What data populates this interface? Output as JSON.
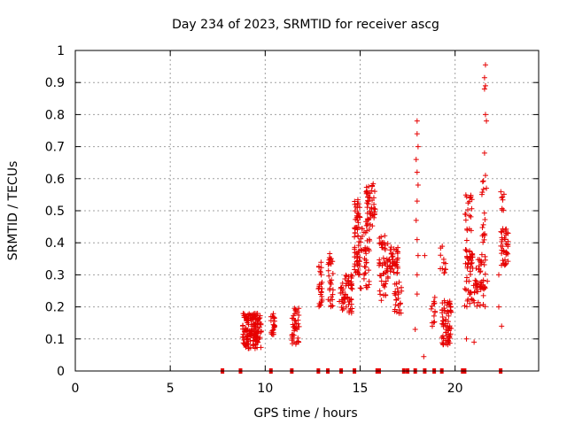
{
  "chart_data": {
    "type": "scatter",
    "title": "Day 234 of 2023, SRMTID for receiver ascg",
    "xlabel": "GPS time / hours",
    "ylabel": "SRMTID / TECUs",
    "xlim": [
      0,
      24.4
    ],
    "ylim": [
      0,
      1
    ],
    "xticks": [
      0,
      5,
      10,
      15,
      20
    ],
    "xtick_labels": [
      "0",
      "5",
      "10",
      "15",
      "20"
    ],
    "yticks": [
      0,
      0.1,
      0.2,
      0.3,
      0.4,
      0.5,
      0.6,
      0.7,
      0.8,
      0.9,
      1
    ],
    "ytick_labels": [
      "0",
      "0.1",
      "0.2",
      "0.3",
      "0.4",
      "0.5",
      "0.6",
      "0.7",
      "0.8",
      "0.9",
      "1"
    ],
    "grid": true,
    "marker": "plus",
    "color": "#e60000",
    "zero_markers_x": [
      7.75,
      8.7,
      10.3,
      11.4,
      12.8,
      13.3,
      14.0,
      14.7,
      15.9,
      16.0,
      17.3,
      17.5,
      17.9,
      18.4,
      18.9,
      19.3,
      20.4,
      20.5,
      22.4
    ],
    "clusters": [
      {
        "x": [
          8.8,
          9.8
        ],
        "y": [
          0.07,
          0.18
        ],
        "n": 160
      },
      {
        "x": [
          10.3,
          10.5
        ],
        "y": [
          0.11,
          0.18
        ],
        "n": 20
      },
      {
        "x": [
          11.4,
          11.8
        ],
        "y": [
          0.08,
          0.2
        ],
        "n": 40
      },
      {
        "x": [
          12.8,
          13.0
        ],
        "y": [
          0.2,
          0.35
        ],
        "n": 25
      },
      {
        "x": [
          13.3,
          13.6
        ],
        "y": [
          0.2,
          0.37
        ],
        "n": 30
      },
      {
        "x": [
          13.9,
          14.6
        ],
        "y": [
          0.18,
          0.3
        ],
        "n": 60
      },
      {
        "x": [
          14.7,
          15.0
        ],
        "y": [
          0.3,
          0.55
        ],
        "n": 60
      },
      {
        "x": [
          15.3,
          15.8
        ],
        "y": [
          0.45,
          0.59
        ],
        "n": 50
      },
      {
        "x": [
          15.0,
          15.5
        ],
        "y": [
          0.25,
          0.45
        ],
        "n": 40
      },
      {
        "x": [
          16.0,
          16.5
        ],
        "y": [
          0.22,
          0.43
        ],
        "n": 50
      },
      {
        "x": [
          16.5,
          17.0
        ],
        "y": [
          0.3,
          0.39
        ],
        "n": 40
      },
      {
        "x": [
          16.8,
          17.2
        ],
        "y": [
          0.18,
          0.28
        ],
        "n": 25
      },
      {
        "x": [
          19.3,
          19.8
        ],
        "y": [
          0.08,
          0.22
        ],
        "n": 70
      },
      {
        "x": [
          19.2,
          19.5
        ],
        "y": [
          0.3,
          0.4
        ],
        "n": 12
      },
      {
        "x": [
          18.6,
          19.0
        ],
        "y": [
          0.15,
          0.24
        ],
        "n": 12
      },
      {
        "x": [
          20.5,
          21.6
        ],
        "y": [
          0.2,
          0.38
        ],
        "n": 90
      },
      {
        "x": [
          20.5,
          20.9
        ],
        "y": [
          0.35,
          0.55
        ],
        "n": 30
      },
      {
        "x": [
          21.4,
          21.6
        ],
        "y": [
          0.4,
          0.6
        ],
        "n": 15
      },
      {
        "x": [
          22.4,
          22.8
        ],
        "y": [
          0.33,
          0.45
        ],
        "n": 40
      },
      {
        "x": [
          22.4,
          22.6
        ],
        "y": [
          0.5,
          0.56
        ],
        "n": 8
      }
    ],
    "outliers": [
      {
        "x": 18.0,
        "y": 0.78
      },
      {
        "x": 18.0,
        "y": 0.74
      },
      {
        "x": 18.05,
        "y": 0.7
      },
      {
        "x": 17.95,
        "y": 0.66
      },
      {
        "x": 18.0,
        "y": 0.62
      },
      {
        "x": 18.05,
        "y": 0.58
      },
      {
        "x": 18.0,
        "y": 0.53
      },
      {
        "x": 17.95,
        "y": 0.47
      },
      {
        "x": 18.0,
        "y": 0.41
      },
      {
        "x": 18.05,
        "y": 0.36
      },
      {
        "x": 18.0,
        "y": 0.3
      },
      {
        "x": 18.0,
        "y": 0.24
      },
      {
        "x": 17.9,
        "y": 0.13
      },
      {
        "x": 18.4,
        "y": 0.36
      },
      {
        "x": 18.35,
        "y": 0.045
      },
      {
        "x": 18.8,
        "y": 0.14
      },
      {
        "x": 21.6,
        "y": 0.955
      },
      {
        "x": 21.55,
        "y": 0.915
      },
      {
        "x": 21.6,
        "y": 0.89
      },
      {
        "x": 21.55,
        "y": 0.88
      },
      {
        "x": 21.6,
        "y": 0.8
      },
      {
        "x": 21.65,
        "y": 0.78
      },
      {
        "x": 21.55,
        "y": 0.68
      },
      {
        "x": 21.6,
        "y": 0.61
      },
      {
        "x": 21.65,
        "y": 0.57
      },
      {
        "x": 21.7,
        "y": 0.28
      },
      {
        "x": 21.0,
        "y": 0.09
      },
      {
        "x": 20.6,
        "y": 0.1
      },
      {
        "x": 22.45,
        "y": 0.14
      },
      {
        "x": 22.3,
        "y": 0.3
      },
      {
        "x": 22.3,
        "y": 0.2
      }
    ]
  }
}
